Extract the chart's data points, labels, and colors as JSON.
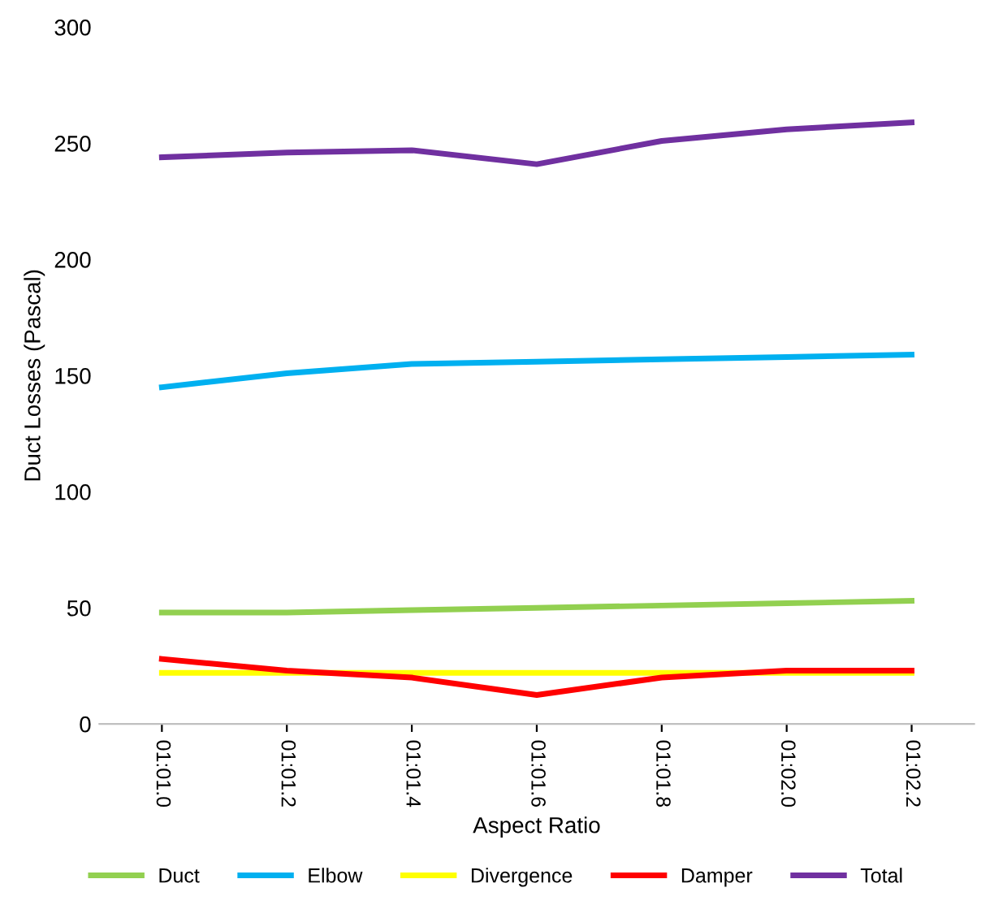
{
  "chart_data": {
    "type": "line",
    "xlabel": "Aspect Ratio",
    "ylabel": "Duct Losses (Pascal)",
    "categories": [
      "01:01.0",
      "01:01.2",
      "01:01.4",
      "01:01.6",
      "01:01.8",
      "01:02.0",
      "01:02.2"
    ],
    "series": [
      {
        "name": "Duct",
        "color": "#92d050",
        "values": [
          48,
          48,
          49,
          50,
          51,
          52,
          53
        ]
      },
      {
        "name": "Elbow",
        "color": "#00b0f0",
        "values": [
          145,
          151,
          155,
          156,
          157,
          158,
          159
        ]
      },
      {
        "name": "Divergence",
        "color": "#ffff00",
        "values": [
          22,
          22,
          22,
          22,
          22,
          22,
          22
        ]
      },
      {
        "name": "Damper",
        "color": "#ff0000",
        "values": [
          28,
          23,
          20,
          12.5,
          20,
          23,
          23
        ]
      },
      {
        "name": "Total",
        "color": "#7030a0",
        "values": [
          244,
          246,
          247,
          241,
          251,
          256,
          259
        ]
      }
    ],
    "ylim": [
      0,
      300
    ],
    "yticks": [
      0,
      50,
      100,
      150,
      200,
      250,
      300
    ],
    "grid": false,
    "legend": "bottom",
    "marker": "none",
    "line_style": "solid"
  }
}
